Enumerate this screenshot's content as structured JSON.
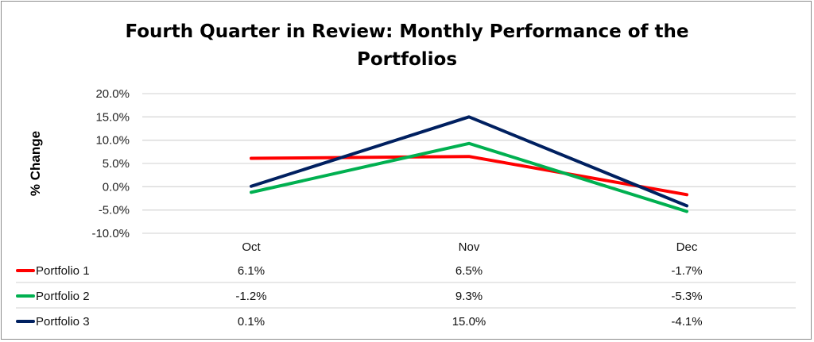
{
  "chart_data": {
    "type": "line",
    "title": "Fourth Quarter in Review: Monthly Performance of the Portfolios",
    "title_lines": [
      "Fourth Quarter in Review: Monthly Performance of the",
      "Portfolios"
    ],
    "xlabel": "",
    "ylabel": "% Change",
    "categories": [
      "Oct",
      "Nov",
      "Dec"
    ],
    "ylim": [
      -10,
      20
    ],
    "yticks": [
      20,
      15,
      10,
      5,
      0,
      -5,
      -10
    ],
    "ytick_labels": [
      "20.0%",
      "15.0%",
      "10.0%",
      "5.0%",
      "0.0%",
      "-5.0%",
      "-10.0%"
    ],
    "grid": true,
    "legend": "data-table",
    "series": [
      {
        "name": "Portfolio 1",
        "color": "#ff0000",
        "values": [
          6.1,
          6.5,
          -1.7
        ],
        "labels": [
          "6.1%",
          "6.5%",
          "-1.7%"
        ]
      },
      {
        "name": "Portfolio 2",
        "color": "#00b050",
        "values": [
          -1.2,
          9.3,
          -5.3
        ],
        "labels": [
          "-1.2%",
          "9.3%",
          "-5.3%"
        ]
      },
      {
        "name": "Portfolio 3",
        "color": "#002060",
        "values": [
          0.1,
          15.0,
          -4.1
        ],
        "labels": [
          "0.1%",
          "15.0%",
          "-4.1%"
        ]
      }
    ]
  }
}
